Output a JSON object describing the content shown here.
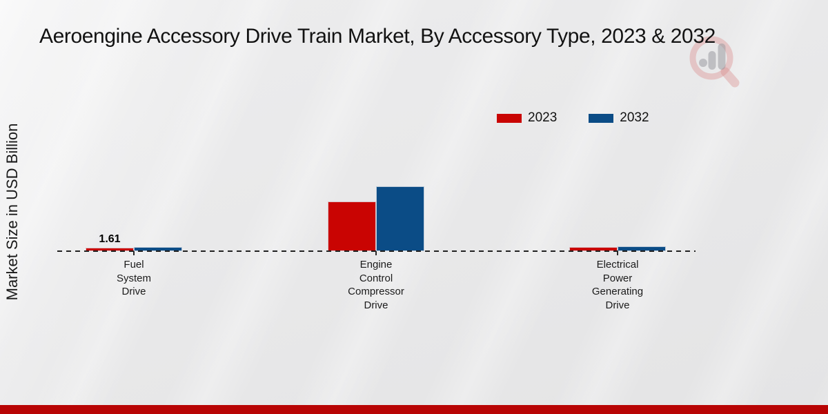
{
  "header": {
    "title": "Aeroengine Accessory Drive Train Market, By Accessory Type, 2023 & 2032"
  },
  "watermark": {
    "name": "magnifier-bar-chart-logo",
    "ring_color": "#d98a8a",
    "bars_color": "#9b9ba1"
  },
  "chart_data": {
    "type": "bar",
    "title": "Aeroengine Accessory Drive Train Market, By Accessory Type, 2023 & 2032",
    "xlabel": "",
    "ylabel": "Market Size in USD Billion",
    "ylim": [
      0,
      32
    ],
    "grid": false,
    "legend_position": "top-right",
    "baseline_style": "dashed",
    "categories": [
      "Fuel System Drive",
      "Engine Control Compressor Drive",
      "Electrical Power Generating Drive"
    ],
    "category_label_lines": [
      [
        "Fuel",
        "System",
        "Drive"
      ],
      [
        "Engine",
        "Control",
        "Compressor",
        "Drive"
      ],
      [
        "Electrical",
        "Power",
        "Generating",
        "Drive"
      ]
    ],
    "series": [
      {
        "name": "2023",
        "color": "#c90402",
        "values": [
          1.61,
          22.4,
          1.8
        ],
        "data_labels": [
          "1.61",
          "",
          ""
        ]
      },
      {
        "name": "2032",
        "color": "#0b4c86",
        "values": [
          1.9,
          29.0,
          2.1
        ],
        "data_labels": [
          "",
          "",
          ""
        ]
      }
    ]
  },
  "footer": {
    "accent_color": "#b80404"
  }
}
